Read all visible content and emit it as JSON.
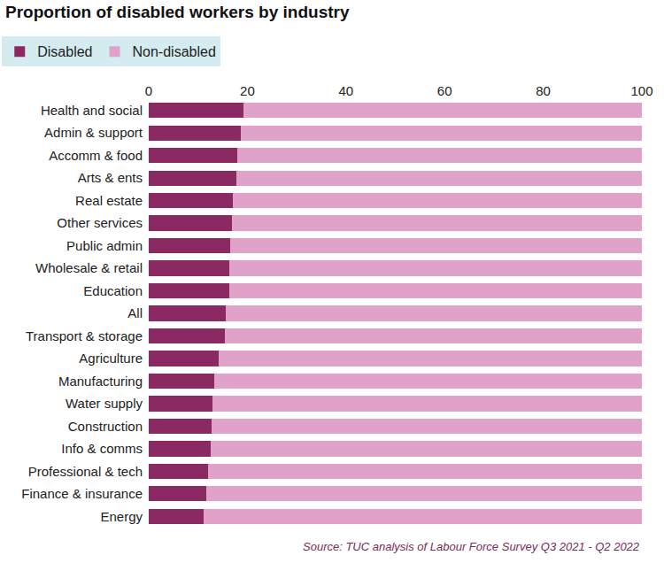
{
  "chart_data": {
    "type": "bar",
    "title": "Proportion of disabled workers by industry",
    "orientation": "horizontal",
    "stacked": true,
    "grid": false,
    "legend": "top left",
    "source": "Source: TUC analysis of Labour Force Survey Q3 2021 - Q2 2022",
    "categories": [
      "Health and social",
      "Admin & support",
      "Accomm & food",
      "Arts & ents",
      "Real estate",
      "Other services",
      "Public admin",
      "Wholesale & retail",
      "Education",
      "All",
      "Transport & storage",
      "Agriculture",
      "Manufacturing",
      "Water supply",
      "Construction",
      "Info & comms",
      "Professional & tech",
      "Finance & insurance",
      "Energy"
    ],
    "series": [
      {
        "name": "Disabled",
        "color": "#8b2a62",
        "values": [
          19.2,
          18.7,
          17.9,
          17.7,
          17.1,
          16.9,
          16.6,
          16.4,
          16.3,
          15.6,
          15.4,
          14.1,
          13.3,
          13.0,
          12.7,
          12.5,
          12.0,
          11.6,
          11.1
        ]
      },
      {
        "name": "Non-disabled",
        "color": "#e1a2c9",
        "values": [
          80.8,
          81.3,
          82.1,
          82.3,
          82.9,
          83.1,
          83.4,
          83.6,
          83.7,
          84.4,
          84.6,
          85.9,
          86.7,
          87.0,
          87.3,
          87.5,
          88.0,
          88.4,
          88.9
        ]
      }
    ],
    "xlim": [
      0,
      100
    ],
    "xticks": [
      0,
      20,
      40,
      60,
      80,
      100
    ]
  }
}
